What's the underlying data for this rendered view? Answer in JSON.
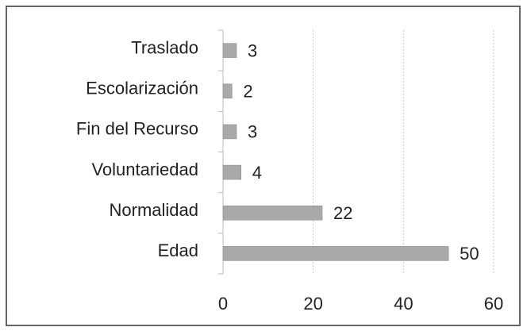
{
  "chart_data": {
    "type": "bar",
    "orientation": "horizontal",
    "categories": [
      "Traslado",
      "Escolarización",
      "Fin del Recurso",
      "Voluntariedad",
      "Normalidad",
      "Edad"
    ],
    "values": [
      3,
      2,
      3,
      4,
      22,
      50
    ],
    "color": "#a9a9a9",
    "xlim": [
      0,
      60
    ],
    "xticks": [
      0,
      20,
      40,
      60
    ],
    "grid": true
  }
}
